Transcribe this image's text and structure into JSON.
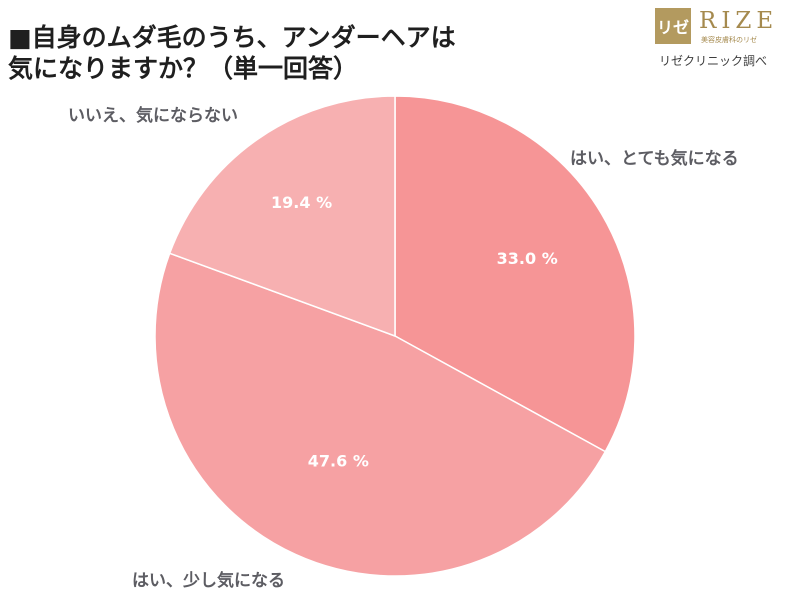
{
  "title_lines": [
    "■自身のムダ毛のうち、アンダーヘアは",
    "気になりますか？（単一回答）"
  ],
  "logo": {
    "mark": "リゼ",
    "name": "RIZE",
    "subtitle": "美容皮膚科のリゼ",
    "credit": "リゼクリニック調べ"
  },
  "colors": {
    "slice_1": "#f69596",
    "slice_2": "#f6a1a3",
    "slice_3": "#f7b0b1",
    "divider": "#ffffff",
    "label": "#5d5d63"
  },
  "chart_data": {
    "type": "pie",
    "categories": [
      "はい、とても気になる",
      "はい、少し気になる",
      "いいえ、気にならない"
    ],
    "values": [
      33.0,
      47.6,
      19.4
    ],
    "value_labels": [
      "33.0 %",
      "47.6 %",
      "19.4 %"
    ],
    "start": "12 o'clock",
    "direction": "clockwise"
  }
}
